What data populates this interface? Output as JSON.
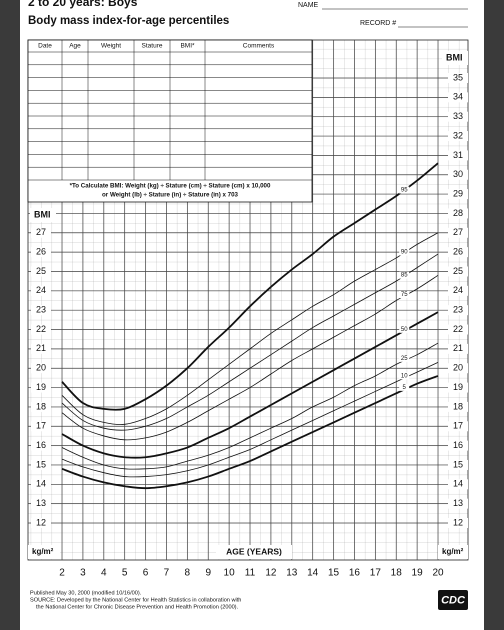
{
  "header": {
    "title_top": "2 to 20 years: Boys",
    "title": "Body mass index-for-age percentiles",
    "name_label": "NAME",
    "record_label": "RECORD #"
  },
  "record_table": {
    "columns": [
      "Date",
      "Age",
      "Weight",
      "Stature",
      "BMI*",
      "Comments"
    ],
    "note": [
      "*To Calculate BMI: Weight (kg) ÷ Stature (cm) ÷ Stature (cm) x 10,000",
      "or Weight (lb) ÷ Stature (in) ÷ Stature (in) x 703"
    ]
  },
  "chart_data": {
    "type": "line",
    "y_label": "BMI",
    "y_unit": "kg/m²",
    "x_label": "AGE (YEARS)",
    "x": [
      2,
      3,
      4,
      5,
      6,
      7,
      8,
      9,
      10,
      11,
      12,
      13,
      14,
      15,
      16,
      17,
      18,
      19,
      20
    ],
    "xlim": [
      2,
      20
    ],
    "xticks": [
      2,
      3,
      4,
      5,
      6,
      7,
      8,
      9,
      10,
      11,
      12,
      13,
      14,
      15,
      16,
      17,
      18,
      19,
      20
    ],
    "ylim": [
      12,
      35
    ],
    "yticks": [
      12,
      13,
      14,
      15,
      16,
      17,
      18,
      19,
      20,
      21,
      22,
      23,
      24,
      25,
      26,
      27,
      28,
      29,
      30,
      31,
      32,
      33,
      34,
      35
    ],
    "grid": true,
    "series": [
      {
        "name": "95",
        "color": "#111111",
        "values": [
          19.3,
          18.2,
          17.9,
          17.9,
          18.4,
          19.1,
          20.0,
          21.1,
          22.1,
          23.2,
          24.2,
          25.1,
          25.9,
          26.8,
          27.5,
          28.2,
          28.9,
          29.7,
          30.6
        ]
      },
      {
        "name": "90",
        "color": "#111111",
        "values": [
          18.6,
          17.6,
          17.2,
          17.1,
          17.4,
          17.9,
          18.6,
          19.4,
          20.2,
          21.0,
          21.8,
          22.5,
          23.2,
          23.8,
          24.5,
          25.1,
          25.7,
          26.4,
          27.0
        ]
      },
      {
        "name": "85",
        "color": "#111111",
        "values": [
          18.2,
          17.3,
          16.9,
          16.8,
          17.0,
          17.4,
          18.0,
          18.6,
          19.3,
          20.0,
          20.7,
          21.4,
          22.1,
          22.7,
          23.3,
          23.9,
          24.5,
          25.2,
          25.9
        ]
      },
      {
        "name": "75",
        "color": "#111111",
        "values": [
          17.7,
          16.9,
          16.5,
          16.3,
          16.4,
          16.7,
          17.2,
          17.8,
          18.4,
          19.0,
          19.7,
          20.4,
          21.0,
          21.6,
          22.2,
          22.8,
          23.5,
          24.1,
          24.8
        ]
      },
      {
        "name": "50",
        "color": "#111111",
        "values": [
          16.6,
          16.0,
          15.6,
          15.4,
          15.4,
          15.6,
          15.9,
          16.4,
          16.9,
          17.5,
          18.1,
          18.7,
          19.3,
          19.9,
          20.5,
          21.1,
          21.7,
          22.3,
          22.9
        ]
      },
      {
        "name": "25",
        "color": "#111111",
        "values": [
          15.9,
          15.4,
          15.0,
          14.8,
          14.8,
          14.9,
          15.2,
          15.5,
          15.9,
          16.4,
          16.9,
          17.4,
          18.0,
          18.5,
          19.1,
          19.6,
          20.2,
          20.7,
          21.3
        ]
      },
      {
        "name": "10",
        "color": "#111111",
        "values": [
          15.3,
          14.9,
          14.6,
          14.4,
          14.4,
          14.5,
          14.7,
          15.0,
          15.4,
          15.8,
          16.3,
          16.8,
          17.3,
          17.8,
          18.3,
          18.8,
          19.3,
          19.8,
          20.3
        ]
      },
      {
        "name": "5",
        "color": "#111111",
        "values": [
          14.8,
          14.4,
          14.1,
          13.9,
          13.8,
          13.9,
          14.1,
          14.4,
          14.8,
          15.2,
          15.7,
          16.2,
          16.7,
          17.2,
          17.7,
          18.2,
          18.7,
          19.2,
          19.6
        ]
      }
    ]
  },
  "footer": {
    "lines": [
      "Published May 30, 2000 (modified 10/16/00).",
      "SOURCE: Developed by the National Center for Health Statistics in collaboration with",
      "the National Center for Chronic Disease Prevention and Health Promotion (2000)."
    ],
    "logo": "CDC"
  }
}
